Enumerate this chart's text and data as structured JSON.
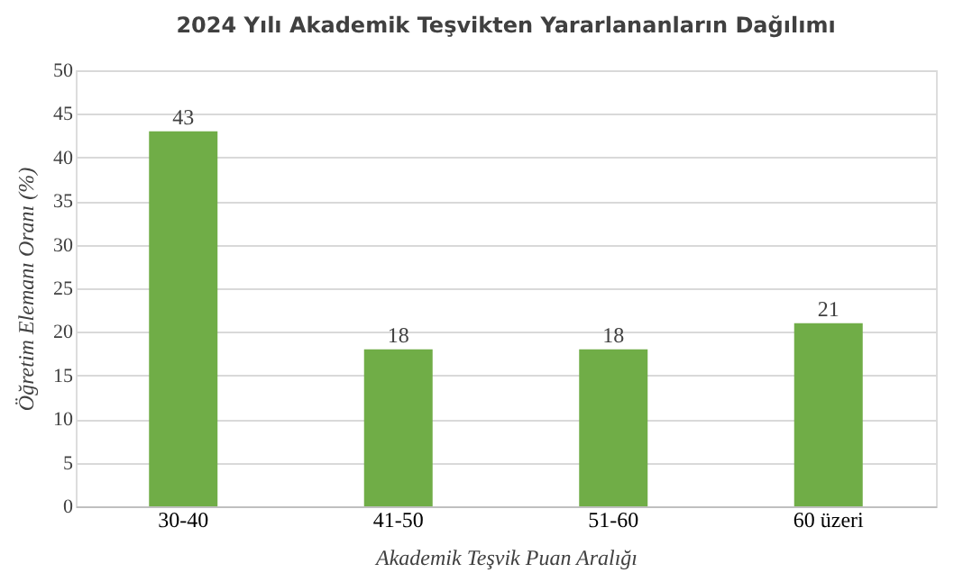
{
  "chart_data": {
    "type": "bar",
    "title": "2024 Yılı Akademik Teşvikten Yararlananların Dağılımı",
    "xlabel": "Akademik Teşvik Puan Aralığı",
    "ylabel": "Öğretim Elemanı Oranı (%)",
    "categories": [
      "30-40",
      "41-50",
      "51-60",
      "60 üzeri"
    ],
    "values": [
      43,
      18,
      18,
      21
    ],
    "color": "#70ad47",
    "ylim": [
      0,
      50
    ],
    "yticks": [
      0,
      5,
      10,
      15,
      20,
      25,
      30,
      35,
      40,
      45,
      50
    ],
    "grid": "y",
    "data_labels": true
  }
}
